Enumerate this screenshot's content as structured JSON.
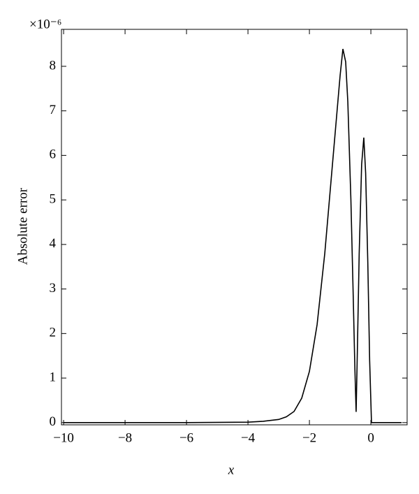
{
  "chart_data": {
    "type": "line",
    "multiplier": "×10⁻⁶",
    "y_label": "Absolute error",
    "x_label": "x",
    "xlim": [
      -10.07,
      1.18
    ],
    "ylim": [
      -0.05,
      8.83
    ],
    "xticks": [
      {
        "value": -10,
        "label": "−10"
      },
      {
        "value": -8,
        "label": "−8"
      },
      {
        "value": -6,
        "label": "−6"
      },
      {
        "value": -4,
        "label": "−4"
      },
      {
        "value": -2,
        "label": "−2"
      },
      0
    ],
    "yticks": [
      0,
      1,
      2,
      3,
      4,
      5,
      6,
      7,
      8
    ],
    "series": [
      {
        "color": "#000000",
        "x": [
          -10,
          -8,
          -6,
          -4,
          -3.5,
          -3,
          -2.75,
          -2.5,
          -2.25,
          -2,
          -1.75,
          -1.5,
          -1.25,
          -1.1,
          -1,
          -0.91,
          -0.82,
          -0.75,
          -0.65,
          -0.58,
          -0.52,
          -0.48,
          -0.44,
          -0.38,
          -0.3,
          -0.23,
          -0.17,
          -0.1,
          -0.04,
          0.02,
          0.5,
          1
        ],
        "values": [
          0,
          0,
          0,
          0.01,
          0.03,
          0.07,
          0.13,
          0.25,
          0.55,
          1.15,
          2.2,
          3.8,
          5.8,
          7.0,
          7.8,
          8.39,
          8.1,
          7.2,
          5.0,
          3.0,
          1.2,
          0.24,
          1.6,
          3.8,
          5.8,
          6.4,
          5.6,
          3.6,
          1.4,
          0,
          0,
          0
        ]
      }
    ]
  }
}
